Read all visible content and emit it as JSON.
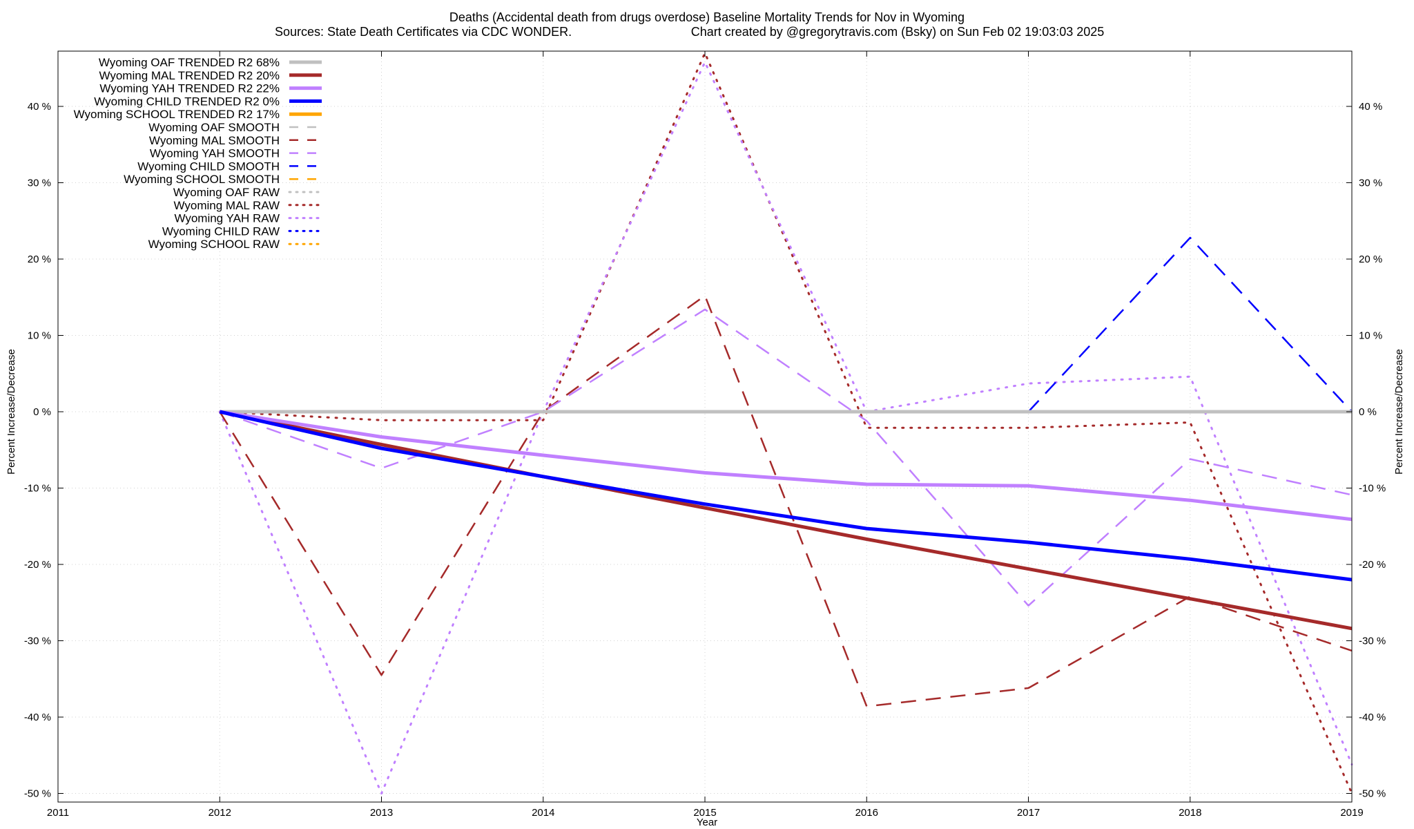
{
  "chart_data": {
    "type": "line",
    "title": "Deaths (Accidental death from drugs overdose)  Baseline Mortality Trends for Nov in Wyoming",
    "subtitle_left": "Sources: State Death Certificates via CDC WONDER.",
    "subtitle_right": "Chart created by @gregorytravis.com (Bsky) on Sun Feb 02 19:03:03 2025",
    "xlabel": "Year",
    "ylabel_left": "Percent Increase/Decrease",
    "ylabel_right": "Percent Increase/Decrease",
    "xlim": [
      2011,
      2019
    ],
    "ylim": [
      -50,
      47
    ],
    "x_ticks": [
      "2011",
      "2012",
      "2013",
      "2014",
      "2015",
      "2016",
      "2017",
      "2018",
      "2019"
    ],
    "y_ticks": [
      "-50 %",
      "-40 %",
      "-30 %",
      "-20 %",
      "-10 %",
      "0 %",
      "10 %",
      "20 %",
      "30 %",
      "40 %"
    ],
    "y_tick_values": [
      -50,
      -40,
      -30,
      -20,
      -10,
      0,
      10,
      20,
      30,
      40
    ],
    "grid": true,
    "legend_position": "top-left",
    "series": [
      {
        "name": "Wyoming OAF TRENDED R2  68%",
        "color": "#c0c0c0",
        "style": "solid",
        "width": 5,
        "x": [
          2012,
          2019
        ],
        "values": [
          0,
          0
        ]
      },
      {
        "name": "Wyoming MAL TRENDED R2  20%",
        "color": "#a52a2a",
        "style": "solid",
        "width": 5,
        "x": [
          2012,
          2013,
          2014,
          2015,
          2016,
          2017,
          2018,
          2019
        ],
        "values": [
          0,
          -4.3,
          -8.5,
          -12.6,
          -16.7,
          -20.6,
          -24.5,
          -28.4
        ]
      },
      {
        "name": "Wyoming YAH TRENDED R2  22%",
        "color": "#c080ff",
        "style": "solid",
        "width": 5,
        "x": [
          2012,
          2013,
          2014,
          2015,
          2016,
          2017,
          2018,
          2019
        ],
        "values": [
          0,
          -3.3,
          -5.7,
          -8.0,
          -9.5,
          -9.7,
          -11.6,
          -14.1
        ]
      },
      {
        "name": "Wyoming CHILD TRENDED R2   0%",
        "color": "#0000ff",
        "style": "solid",
        "width": 5,
        "x": [
          2012,
          2013,
          2014,
          2015,
          2016,
          2017,
          2018,
          2019
        ],
        "values": [
          0,
          -4.8,
          -8.5,
          -12.1,
          -15.3,
          -17.1,
          -19.3,
          -22.0
        ]
      },
      {
        "name": "Wyoming SCHOOL TRENDED R2  17%",
        "color": "#ffa500",
        "style": "solid",
        "width": 5,
        "x": [],
        "values": []
      },
      {
        "name": "Wyoming OAF SMOOTH",
        "color": "#c0c0c0",
        "style": "dashed",
        "width": 2.5,
        "x": [],
        "values": []
      },
      {
        "name": "Wyoming MAL SMOOTH",
        "color": "#a52a2a",
        "style": "dashed",
        "width": 2.5,
        "x": [
          2012,
          2013,
          2014,
          2015,
          2016,
          2017,
          2018,
          2019
        ],
        "values": [
          0,
          -34.5,
          0,
          15.2,
          -38.6,
          -36.2,
          -24.2,
          -31.3
        ]
      },
      {
        "name": "Wyoming YAH SMOOTH",
        "color": "#c080ff",
        "style": "dashed",
        "width": 2.5,
        "x": [
          2012,
          2013,
          2014,
          2015,
          2016,
          2017,
          2018,
          2019
        ],
        "values": [
          0,
          -7.4,
          0,
          13.4,
          -1.2,
          -25.4,
          -6.2,
          -10.9
        ]
      },
      {
        "name": "Wyoming CHILD SMOOTH",
        "color": "#0000ff",
        "style": "dashed",
        "width": 2.5,
        "x": [
          2017,
          2018,
          2019
        ],
        "values": [
          0,
          22.8,
          0
        ]
      },
      {
        "name": "Wyoming SCHOOL SMOOTH",
        "color": "#ffa500",
        "style": "dashed",
        "width": 2.5,
        "x": [],
        "values": []
      },
      {
        "name": "Wyoming OAF RAW",
        "color": "#c0c0c0",
        "style": "dotted",
        "width": 3,
        "x": [],
        "values": []
      },
      {
        "name": "Wyoming MAL RAW",
        "color": "#a52a2a",
        "style": "dotted",
        "width": 3,
        "x": [
          2012,
          2013,
          2014,
          2015,
          2016,
          2017,
          2018,
          2019
        ],
        "values": [
          0,
          -1.1,
          -1.1,
          47.0,
          -2.1,
          -2.1,
          -1.4,
          -50.0
        ]
      },
      {
        "name": "Wyoming YAH RAW",
        "color": "#c080ff",
        "style": "dotted",
        "width": 3,
        "x": [
          2012,
          2013,
          2014,
          2015,
          2016,
          2017,
          2018,
          2019
        ],
        "values": [
          0,
          -50.0,
          0,
          45.8,
          0,
          3.7,
          4.6,
          -46.2
        ]
      },
      {
        "name": "Wyoming CHILD RAW",
        "color": "#0000ff",
        "style": "dotted",
        "width": 3,
        "x": [],
        "values": []
      },
      {
        "name": "Wyoming SCHOOL RAW",
        "color": "#ffa500",
        "style": "dotted",
        "width": 3,
        "x": [],
        "values": []
      }
    ]
  }
}
